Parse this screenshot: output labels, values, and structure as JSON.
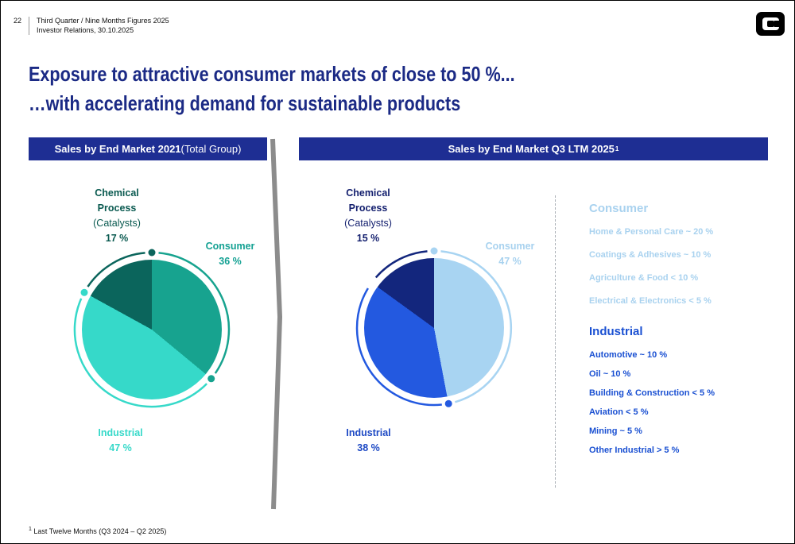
{
  "meta": {
    "page_number": "22",
    "header_line1": "Third Quarter / Nine Months Figures 2025",
    "header_line2": "Investor Relations, 30.10.2025",
    "footnote_sup": "1",
    "footnote_text": " Last Twelve Months (Q3 2024 – Q2 2025)"
  },
  "colors": {
    "title_navy": "#1b2a85",
    "panel_bar": "#1e2e93",
    "divider_gray": "#8c8c8c"
  },
  "title": {
    "line1": "Exposure to attractive consumer markets of close to 50 %...",
    "line2": "…with accelerating demand for sustainable products"
  },
  "panel_left": {
    "title_bold": "Sales by End Market 2021",
    "title_rest": " (Total Group)"
  },
  "panel_right": {
    "title_bold": "Sales by End Market Q3 LTM 2025",
    "title_sup": "1"
  },
  "chart_data": [
    {
      "type": "pie",
      "title": "Sales by End Market 2021 (Total Group)",
      "start_angle_deg": 0,
      "slices": [
        {
          "label": "Consumer",
          "value": 36,
          "unit": "%",
          "color": "#17a38f"
        },
        {
          "label": "Industrial",
          "value": 47,
          "unit": "%",
          "color": "#36d9c9"
        },
        {
          "label": "Chemical Process (Catalysts)",
          "value": 17,
          "unit": "%",
          "color": "#0b655c"
        }
      ],
      "decor_dots": [
        {
          "deg": 0,
          "color": "#0b655c"
        },
        {
          "deg": 129.6,
          "color": "#17a38f"
        },
        {
          "deg": 298.8,
          "color": "#36d9c9"
        }
      ],
      "callouts": {
        "chemical": {
          "name": "Chemical Process",
          "sub": "(Catalysts)",
          "value": "17 %",
          "color": "#0a5a50"
        },
        "consumer": {
          "name": "Consumer",
          "value": "36 %",
          "color": "#14a193"
        },
        "industrial": {
          "name": "Industrial",
          "value": "47 %",
          "color": "#36d9c9"
        }
      }
    },
    {
      "type": "pie",
      "title": "Sales by End Market Q3 LTM 2025",
      "start_angle_deg": 0,
      "slices": [
        {
          "label": "Consumer",
          "value": 47,
          "unit": "%",
          "color": "#a8d4f2"
        },
        {
          "label": "Industrial",
          "value": 38,
          "unit": "%",
          "color": "#2359e0"
        },
        {
          "label": "Chemical Process (Catalysts)",
          "value": 15,
          "unit": "%",
          "color": "#13267d"
        }
      ],
      "decor_dots": [
        {
          "deg": 0,
          "color": "#a8d4f2"
        },
        {
          "deg": 169.2,
          "color": "#2359e0"
        }
      ],
      "callouts": {
        "chemical": {
          "name": "Chemical Process",
          "sub": "(Catalysts)",
          "value": "15 %",
          "color": "#131f6e"
        },
        "consumer": {
          "name": "Consumer",
          "value": "47 %",
          "color": "#a8d2ef"
        },
        "industrial": {
          "name": "Industrial",
          "value": "38 %",
          "color": "#1d49c4"
        }
      }
    }
  ],
  "legend": {
    "consumer": {
      "title": "Consumer",
      "color": "#a9d2ef",
      "items": [
        "Home & Personal Care ~ 20 %",
        "Coatings & Adhesives ~ 10 %",
        "Agriculture & Food < 10 %",
        "Electrical & Electronics < 5 %"
      ]
    },
    "industrial": {
      "title": "Industrial",
      "color": "#1a50d2",
      "items": [
        "Automotive ~ 10 %",
        "Oil ~ 10 %",
        "Building & Construction < 5 %",
        "Aviation < 5 %",
        "Mining ~ 5 %",
        "Other Industrial > 5 %"
      ]
    }
  }
}
